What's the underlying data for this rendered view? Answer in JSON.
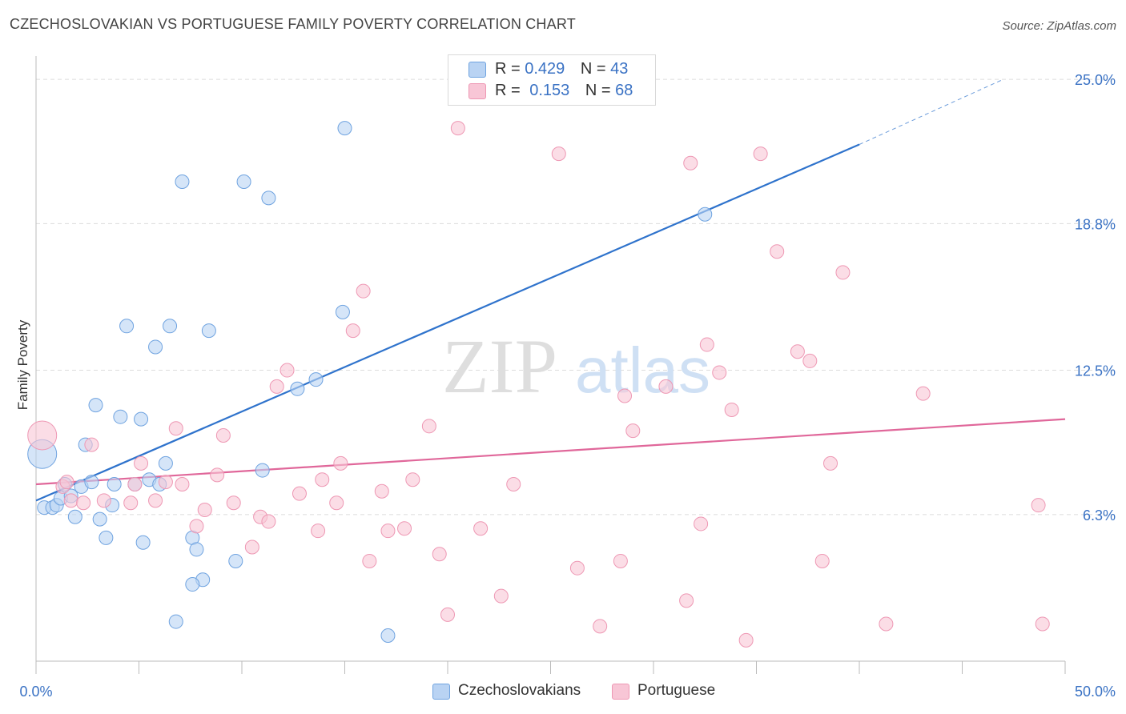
{
  "header": {
    "title": "CZECHOSLOVAKIAN VS PORTUGUESE FAMILY POVERTY CORRELATION CHART",
    "source": "Source: ZipAtlas.com"
  },
  "legend": {
    "rows": [
      {
        "r_label": "R = ",
        "r_value": "0.429",
        "n_label": "N = ",
        "n_value": "43",
        "color": "#a8c8f0"
      },
      {
        "r_label": "R = ",
        "r_value": "0.153",
        "n_label": "N = ",
        "n_value": "68",
        "color": "#f6b8cb"
      }
    ]
  },
  "bottom_legend": [
    "Czechoslovakians",
    "Portuguese"
  ],
  "watermark": {
    "zip": "ZIP",
    "atlas": "atlas"
  },
  "chart_data": {
    "type": "scatter",
    "title": "CZECHOSLOVAKIAN VS PORTUGUESE FAMILY POVERTY CORRELATION CHART",
    "ylabel": "Family Poverty",
    "xlabel": "",
    "xlim": [
      0,
      50
    ],
    "ylim": [
      0,
      26
    ],
    "x_tick_labels": [
      "0.0%",
      "50.0%"
    ],
    "y_ticks": [
      6.3,
      12.5,
      18.8,
      25.0
    ],
    "y_tick_labels": [
      "6.3%",
      "12.5%",
      "18.8%",
      "25.0%"
    ],
    "grid": true,
    "legend_position": "top-center",
    "series": [
      {
        "name": "Czechoslovakians",
        "color": "#6fa3e0",
        "fill": "#b9d3f3",
        "trend": {
          "x": [
            0,
            40
          ],
          "y": [
            6.9,
            22.2
          ],
          "dashed_extension": {
            "x": [
              40,
              47
            ],
            "y": [
              22.2,
              25.0
            ]
          },
          "color": "#2f73cc"
        },
        "points": [
          {
            "x": 0.3,
            "y": 8.9,
            "big": true
          },
          {
            "x": 0.4,
            "y": 6.6
          },
          {
            "x": 0.8,
            "y": 6.6
          },
          {
            "x": 1.0,
            "y": 6.7
          },
          {
            "x": 1.2,
            "y": 7.0
          },
          {
            "x": 1.4,
            "y": 7.6
          },
          {
            "x": 1.7,
            "y": 7.1
          },
          {
            "x": 1.9,
            "y": 6.2
          },
          {
            "x": 2.2,
            "y": 7.5
          },
          {
            "x": 2.4,
            "y": 9.3
          },
          {
            "x": 2.7,
            "y": 7.7
          },
          {
            "x": 2.9,
            "y": 11.0
          },
          {
            "x": 3.1,
            "y": 6.1
          },
          {
            "x": 3.4,
            "y": 5.3
          },
          {
            "x": 3.7,
            "y": 6.7
          },
          {
            "x": 4.1,
            "y": 10.5
          },
          {
            "x": 4.4,
            "y": 14.4
          },
          {
            "x": 4.8,
            "y": 7.6
          },
          {
            "x": 5.1,
            "y": 10.4
          },
          {
            "x": 5.2,
            "y": 5.1
          },
          {
            "x": 5.5,
            "y": 7.8
          },
          {
            "x": 5.8,
            "y": 13.5
          },
          {
            "x": 6.3,
            "y": 8.5
          },
          {
            "x": 6.5,
            "y": 14.4
          },
          {
            "x": 6.8,
            "y": 1.7
          },
          {
            "x": 7.1,
            "y": 20.6
          },
          {
            "x": 7.6,
            "y": 5.3
          },
          {
            "x": 7.8,
            "y": 4.8
          },
          {
            "x": 8.1,
            "y": 3.5
          },
          {
            "x": 8.4,
            "y": 14.2
          },
          {
            "x": 9.7,
            "y": 4.3
          },
          {
            "x": 10.1,
            "y": 20.6
          },
          {
            "x": 11.0,
            "y": 8.2
          },
          {
            "x": 11.3,
            "y": 19.9
          },
          {
            "x": 12.7,
            "y": 11.7
          },
          {
            "x": 13.6,
            "y": 12.1
          },
          {
            "x": 14.9,
            "y": 15.0
          },
          {
            "x": 15.0,
            "y": 22.9
          },
          {
            "x": 17.1,
            "y": 1.1
          },
          {
            "x": 32.5,
            "y": 19.2
          },
          {
            "x": 6.0,
            "y": 7.6
          },
          {
            "x": 3.8,
            "y": 7.6
          },
          {
            "x": 7.6,
            "y": 3.3
          }
        ]
      },
      {
        "name": "Portuguese",
        "color": "#ee98b4",
        "fill": "#f8c6d6",
        "trend": {
          "x": [
            0,
            50
          ],
          "y": [
            7.6,
            10.4
          ],
          "color": "#e0679a"
        },
        "points": [
          {
            "x": 0.3,
            "y": 9.7,
            "big": true
          },
          {
            "x": 1.3,
            "y": 7.5
          },
          {
            "x": 1.7,
            "y": 6.9
          },
          {
            "x": 2.3,
            "y": 6.8
          },
          {
            "x": 2.7,
            "y": 9.3
          },
          {
            "x": 3.3,
            "y": 6.9
          },
          {
            "x": 4.6,
            "y": 6.8
          },
          {
            "x": 5.1,
            "y": 8.5
          },
          {
            "x": 4.8,
            "y": 7.6
          },
          {
            "x": 5.8,
            "y": 6.9
          },
          {
            "x": 6.3,
            "y": 7.7
          },
          {
            "x": 7.1,
            "y": 7.6
          },
          {
            "x": 6.8,
            "y": 10.0
          },
          {
            "x": 7.8,
            "y": 5.8
          },
          {
            "x": 8.2,
            "y": 6.5
          },
          {
            "x": 8.8,
            "y": 8.0
          },
          {
            "x": 9.1,
            "y": 9.7
          },
          {
            "x": 9.6,
            "y": 6.8
          },
          {
            "x": 10.5,
            "y": 4.9
          },
          {
            "x": 10.9,
            "y": 6.2
          },
          {
            "x": 11.3,
            "y": 6.0
          },
          {
            "x": 11.7,
            "y": 11.8
          },
          {
            "x": 12.2,
            "y": 12.5
          },
          {
            "x": 12.8,
            "y": 7.2
          },
          {
            "x": 13.7,
            "y": 5.6
          },
          {
            "x": 13.9,
            "y": 7.8
          },
          {
            "x": 14.6,
            "y": 6.8
          },
          {
            "x": 14.8,
            "y": 8.5
          },
          {
            "x": 15.4,
            "y": 14.2
          },
          {
            "x": 15.9,
            "y": 15.9
          },
          {
            "x": 16.2,
            "y": 4.3
          },
          {
            "x": 16.8,
            "y": 7.3
          },
          {
            "x": 17.1,
            "y": 5.6
          },
          {
            "x": 17.9,
            "y": 5.7
          },
          {
            "x": 18.3,
            "y": 7.8
          },
          {
            "x": 19.1,
            "y": 10.1
          },
          {
            "x": 19.6,
            "y": 4.6
          },
          {
            "x": 20.0,
            "y": 2.0
          },
          {
            "x": 20.5,
            "y": 22.9
          },
          {
            "x": 21.6,
            "y": 5.7
          },
          {
            "x": 22.6,
            "y": 2.8
          },
          {
            "x": 23.2,
            "y": 7.6
          },
          {
            "x": 25.4,
            "y": 21.8
          },
          {
            "x": 26.3,
            "y": 4.0
          },
          {
            "x": 27.4,
            "y": 1.5
          },
          {
            "x": 28.4,
            "y": 4.3
          },
          {
            "x": 28.6,
            "y": 11.4
          },
          {
            "x": 29.0,
            "y": 9.9
          },
          {
            "x": 30.6,
            "y": 11.8
          },
          {
            "x": 31.6,
            "y": 2.6
          },
          {
            "x": 31.8,
            "y": 21.4
          },
          {
            "x": 32.3,
            "y": 5.9
          },
          {
            "x": 32.6,
            "y": 13.6
          },
          {
            "x": 33.2,
            "y": 12.4
          },
          {
            "x": 33.8,
            "y": 10.8
          },
          {
            "x": 34.5,
            "y": 0.9
          },
          {
            "x": 35.2,
            "y": 21.8
          },
          {
            "x": 36.0,
            "y": 17.6
          },
          {
            "x": 37.0,
            "y": 13.3
          },
          {
            "x": 37.6,
            "y": 12.9
          },
          {
            "x": 38.2,
            "y": 4.3
          },
          {
            "x": 38.6,
            "y": 8.5
          },
          {
            "x": 39.2,
            "y": 16.7
          },
          {
            "x": 41.3,
            "y": 1.6
          },
          {
            "x": 43.1,
            "y": 11.5
          },
          {
            "x": 48.7,
            "y": 6.7
          },
          {
            "x": 48.9,
            "y": 1.6
          },
          {
            "x": 1.5,
            "y": 7.7
          }
        ]
      }
    ]
  }
}
